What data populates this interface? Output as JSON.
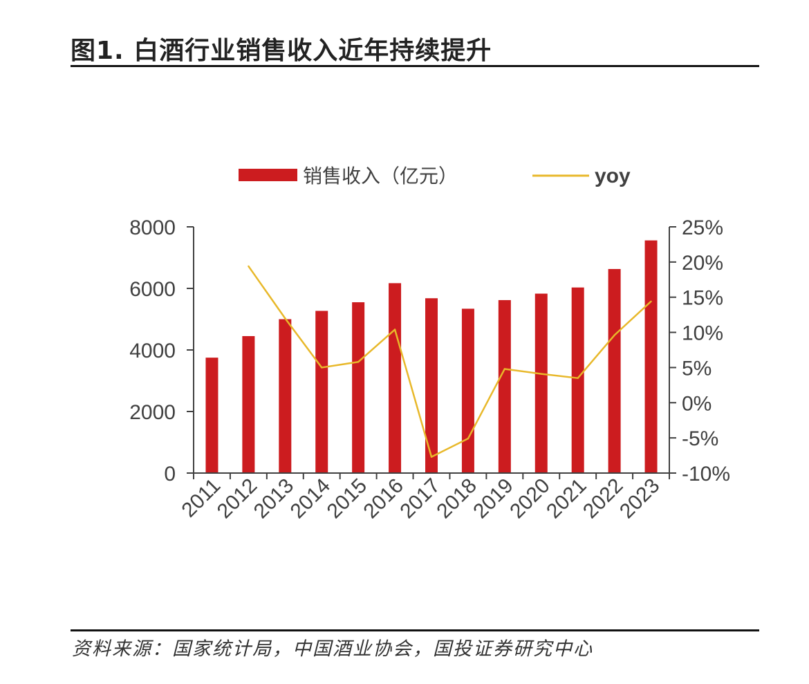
{
  "figure": {
    "title": "图1. 白酒行业销售收入近年持续提升",
    "source": "资料来源：国家统计局，中国酒业协会，国投证券研究中心"
  },
  "chart_data": {
    "type": "bar",
    "categories": [
      "2011",
      "2012",
      "2013",
      "2014",
      "2015",
      "2016",
      "2017",
      "2018",
      "2019",
      "2020",
      "2021",
      "2022",
      "2023"
    ],
    "series": [
      {
        "name": "销售收入（亿元）",
        "type": "bar",
        "axis": "left",
        "color": "#cc1c1f",
        "values": [
          3750,
          4450,
          5000,
          5270,
          5550,
          6170,
          5680,
          5340,
          5620,
          5830,
          6030,
          6630,
          7560
        ]
      },
      {
        "name": "yoy",
        "type": "line",
        "axis": "right",
        "color": "#e8b82a",
        "values": [
          null,
          19.4,
          12.0,
          5.0,
          5.8,
          10.4,
          -7.7,
          -5.1,
          4.8,
          4.1,
          3.5,
          9.6,
          14.4
        ]
      }
    ],
    "y_left": {
      "ylim": [
        0,
        8000
      ],
      "ticks": [
        "0",
        "2000",
        "4000",
        "6000",
        "8000"
      ]
    },
    "y_right": {
      "ylim": [
        -10,
        25
      ],
      "ticks": [
        "-10%",
        "-5%",
        "0%",
        "5%",
        "10%",
        "15%",
        "20%",
        "25%"
      ]
    },
    "legend": "top",
    "grid": false
  }
}
